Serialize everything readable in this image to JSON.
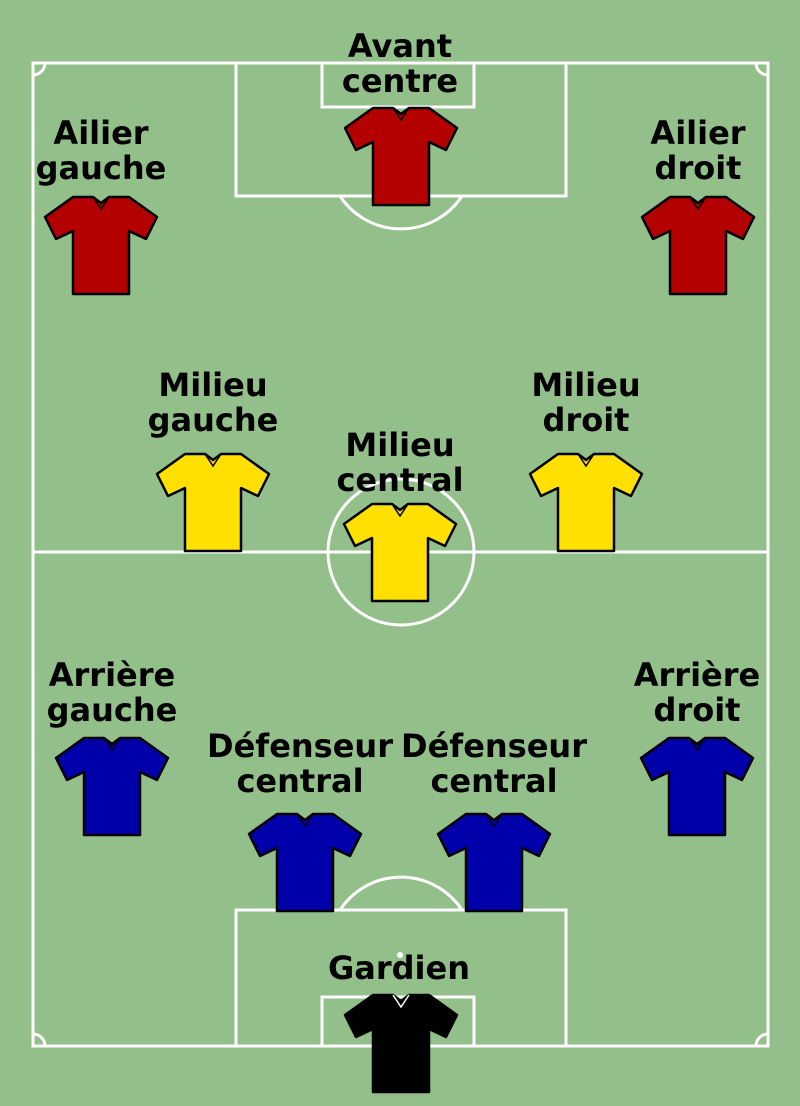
{
  "colors": {
    "grass": "#93bf8b",
    "lines": "#ffffff",
    "attack": "#b30000",
    "midfield": "#ffe000",
    "defense": "#0000aa",
    "goalkeeper": "#000000"
  },
  "players": [
    {
      "id": "avant-centre",
      "line1": "Avant",
      "line2": "centre",
      "role": "attack"
    },
    {
      "id": "ailier-gauche",
      "line1": "Ailier",
      "line2": "gauche",
      "role": "attack"
    },
    {
      "id": "ailier-droit",
      "line1": "Ailier",
      "line2": "droit",
      "role": "attack"
    },
    {
      "id": "milieu-gauche",
      "line1": "Milieu",
      "line2": "gauche",
      "role": "midfield"
    },
    {
      "id": "milieu-central",
      "line1": "Milieu",
      "line2": "central",
      "role": "midfield"
    },
    {
      "id": "milieu-droit",
      "line1": "Milieu",
      "line2": "droit",
      "role": "midfield"
    },
    {
      "id": "arriere-gauche",
      "line1": "Arrière",
      "line2": "gauche",
      "role": "defense"
    },
    {
      "id": "defenseur-central-1",
      "line1": "Défenseur",
      "line2": "central",
      "role": "defense"
    },
    {
      "id": "defenseur-central-2",
      "line1": "Défenseur",
      "line2": "central",
      "role": "defense"
    },
    {
      "id": "arriere-droit",
      "line1": "Arrière",
      "line2": "droit",
      "role": "defense"
    },
    {
      "id": "gardien",
      "line1": "Gardien",
      "line2": "",
      "role": "goalkeeper"
    }
  ]
}
